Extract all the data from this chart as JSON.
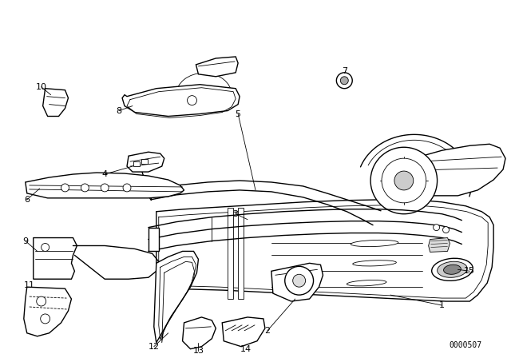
{
  "bg_color": "#ffffff",
  "line_color": "#000000",
  "fig_width": 6.4,
  "fig_height": 4.48,
  "dpi": 100,
  "diagram_code": "0000507",
  "label_fontsize": 8,
  "code_fontsize": 7
}
